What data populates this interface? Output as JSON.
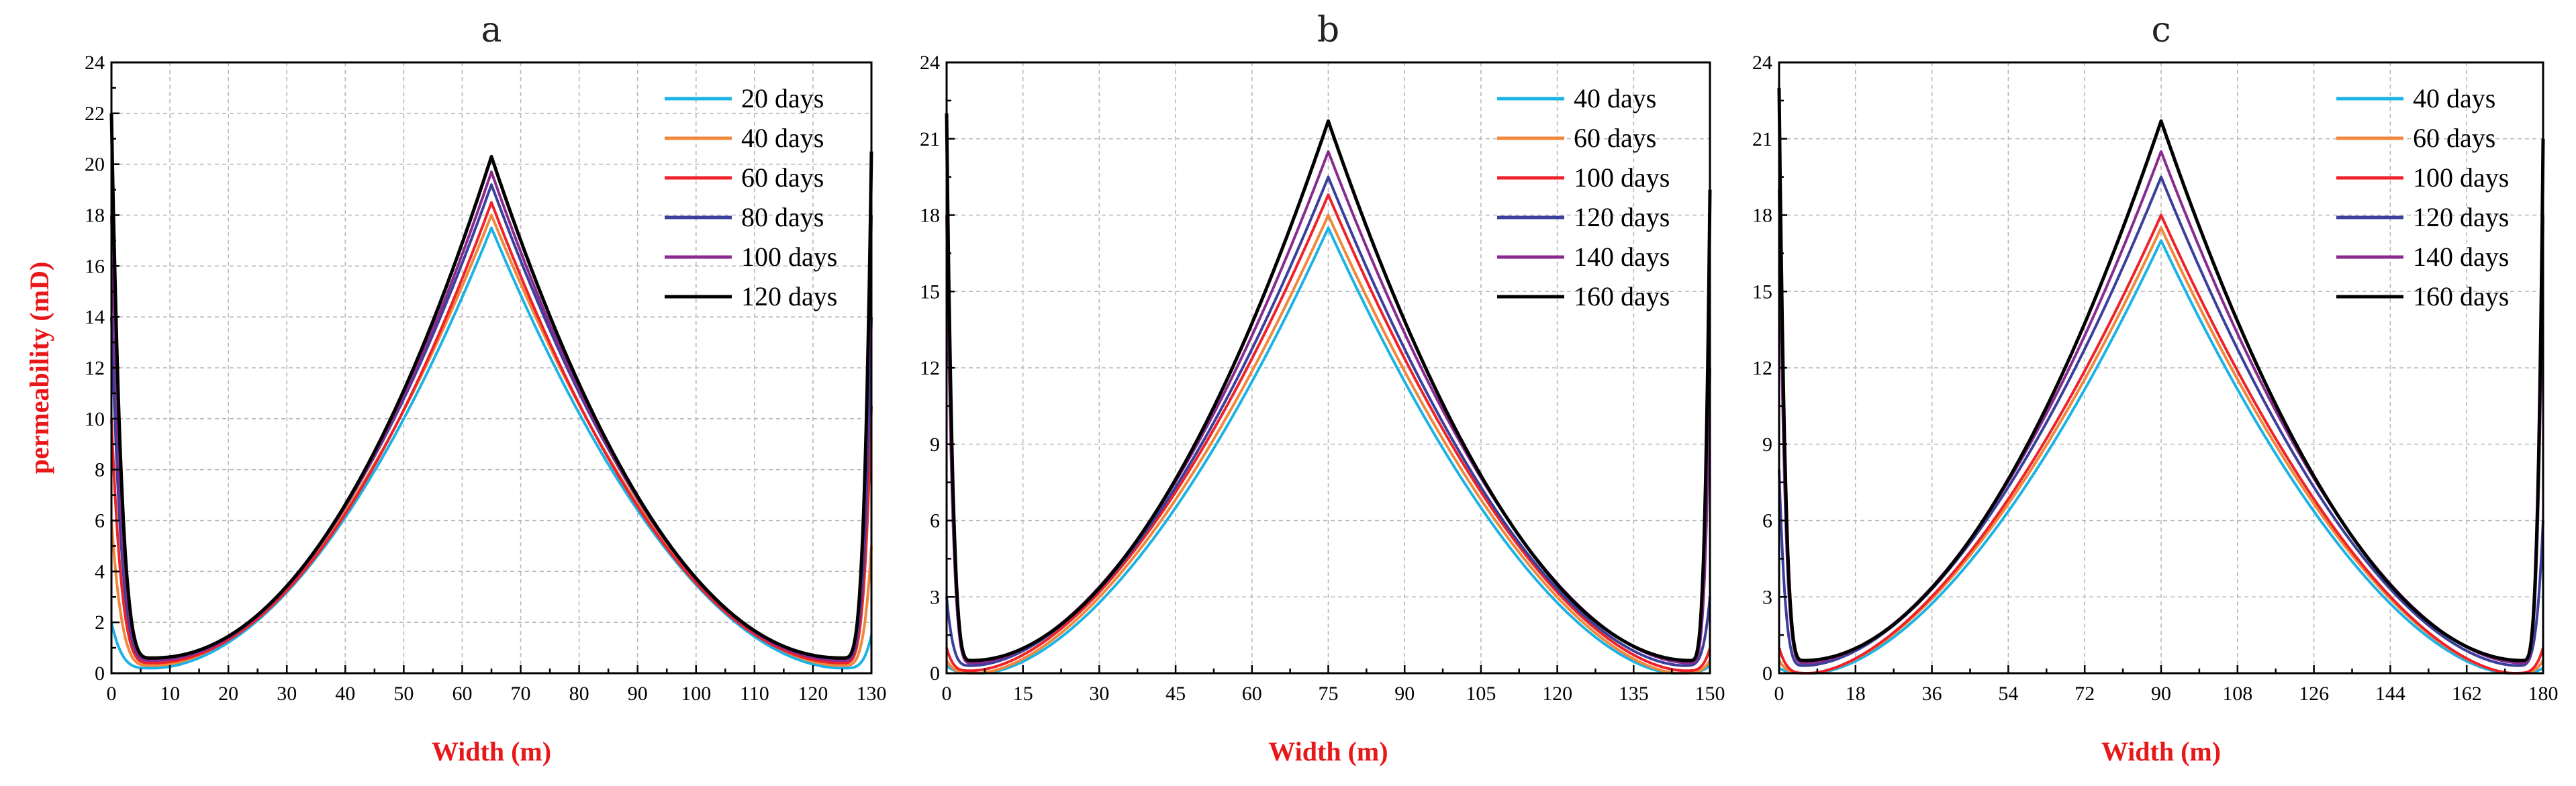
{
  "chart_data": [
    {
      "type": "line",
      "title": "a",
      "xlabel": "Width (m)",
      "ylabel": "permeability (mD)",
      "xlim": [
        0,
        130
      ],
      "ylim": [
        0,
        24
      ],
      "xticks": [
        0,
        10,
        20,
        30,
        40,
        50,
        60,
        70,
        80,
        90,
        100,
        110,
        120,
        130
      ],
      "yticks": [
        0,
        2,
        4,
        6,
        8,
        10,
        12,
        14,
        16,
        18,
        20,
        22,
        24
      ],
      "grid": true,
      "legend_position": "top-right",
      "series": [
        {
          "name": "20 days",
          "color": "#1bb3e6",
          "peak_x": 65,
          "peak": 17.5,
          "left_edge": 2.0,
          "right_edge": 1.5,
          "min_left_x": 7,
          "min_left": 0.2,
          "min_right_x": 125,
          "min_right": 0.2,
          "w": 1.9
        },
        {
          "name": "40 days",
          "color": "#f0883c",
          "peak_x": 65,
          "peak": 18.0,
          "left_edge": 6.0,
          "right_edge": 5.0,
          "min_left_x": 7,
          "min_left": 0.3,
          "min_right_x": 125,
          "min_right": 0.3,
          "w": 1.9
        },
        {
          "name": "60 days",
          "color": "#ee2228",
          "peak_x": 65,
          "peak": 18.5,
          "left_edge": 10.0,
          "right_edge": 10.5,
          "min_left_x": 7,
          "min_left": 0.4,
          "min_right_x": 125,
          "min_right": 0.4,
          "w": 2.0
        },
        {
          "name": "80 days",
          "color": "#3a3f9c",
          "peak_x": 65,
          "peak": 19.2,
          "left_edge": 14.0,
          "right_edge": 14.0,
          "min_left_x": 7,
          "min_left": 0.5,
          "min_right_x": 125,
          "min_right": 0.5,
          "w": 2.0
        },
        {
          "name": "100 days",
          "color": "#8a2a8f",
          "peak_x": 65,
          "peak": 19.7,
          "left_edge": 18.0,
          "right_edge": 18.0,
          "min_left_x": 7,
          "min_left": 0.5,
          "min_right_x": 125,
          "min_right": 0.5,
          "w": 2.05
        },
        {
          "name": "120 days",
          "color": "#000000",
          "peak_x": 65,
          "peak": 20.3,
          "left_edge": 22.0,
          "right_edge": 20.5,
          "min_left_x": 7,
          "min_left": 0.6,
          "min_right_x": 125,
          "min_right": 0.6,
          "w": 2.1
        }
      ]
    },
    {
      "type": "line",
      "title": "b",
      "xlabel": "Width (m)",
      "ylabel": "",
      "xlim": [
        0,
        150
      ],
      "ylim": [
        0,
        24
      ],
      "xticks": [
        0,
        15,
        30,
        45,
        60,
        75,
        90,
        105,
        120,
        135,
        150
      ],
      "yticks": [
        0,
        3,
        6,
        9,
        12,
        15,
        18,
        21,
        24
      ],
      "grid": true,
      "legend_position": "top-right",
      "series": [
        {
          "name": "40 days",
          "color": "#1bb3e6",
          "peak_x": 75,
          "peak": 17.5,
          "left_edge": 0.3,
          "right_edge": 0.3,
          "min_left_x": 7,
          "min_left": 0.0,
          "min_right_x": 143,
          "min_right": 0.0,
          "w": 1.7
        },
        {
          "name": "60 days",
          "color": "#f0883c",
          "peak_x": 75,
          "peak": 18.0,
          "left_edge": 0.5,
          "right_edge": 0.5,
          "min_left_x": 6,
          "min_left": 0.0,
          "min_right_x": 144,
          "min_right": 0.0,
          "w": 1.7
        },
        {
          "name": "100 days",
          "color": "#ee2228",
          "peak_x": 75,
          "peak": 18.8,
          "left_edge": 1.0,
          "right_edge": 1.0,
          "min_left_x": 5,
          "min_left": 0.1,
          "min_right_x": 145,
          "min_right": 0.1,
          "w": 1.75
        },
        {
          "name": "120 days",
          "color": "#3a3f9c",
          "peak_x": 75,
          "peak": 19.5,
          "left_edge": 3.0,
          "right_edge": 3.0,
          "min_left_x": 5,
          "min_left": 0.3,
          "min_right_x": 145,
          "min_right": 0.3,
          "w": 1.8
        },
        {
          "name": "140 days",
          "color": "#8a2a8f",
          "peak_x": 75,
          "peak": 20.5,
          "left_edge": 18.0,
          "right_edge": 12.0,
          "min_left_x": 5,
          "min_left": 0.4,
          "min_right_x": 146,
          "min_right": 0.4,
          "w": 1.85
        },
        {
          "name": "160 days",
          "color": "#000000",
          "peak_x": 75,
          "peak": 21.7,
          "left_edge": 22.0,
          "right_edge": 19.0,
          "min_left_x": 5,
          "min_left": 0.5,
          "min_right_x": 146,
          "min_right": 0.5,
          "w": 1.95
        }
      ]
    },
    {
      "type": "line",
      "title": "c",
      "xlabel": "Width (m)",
      "ylabel": "",
      "xlim": [
        0,
        180
      ],
      "ylim": [
        0,
        24
      ],
      "xticks": [
        0,
        18,
        36,
        54,
        72,
        90,
        108,
        126,
        144,
        162,
        180
      ],
      "yticks": [
        0,
        3,
        6,
        9,
        12,
        15,
        18,
        21,
        24
      ],
      "grid": true,
      "legend_position": "top-right",
      "series": [
        {
          "name": "40 days",
          "color": "#1bb3e6",
          "peak_x": 90,
          "peak": 17.0,
          "left_edge": 0.2,
          "right_edge": 0.2,
          "min_left_x": 8,
          "min_left": 0.0,
          "min_right_x": 172,
          "min_right": 0.0,
          "w": 1.7
        },
        {
          "name": "60 days",
          "color": "#f0883c",
          "peak_x": 90,
          "peak": 17.5,
          "left_edge": 0.5,
          "right_edge": 0.5,
          "min_left_x": 7,
          "min_left": 0.0,
          "min_right_x": 173,
          "min_right": 0.0,
          "w": 1.7
        },
        {
          "name": "100 days",
          "color": "#ee2228",
          "peak_x": 90,
          "peak": 18.0,
          "left_edge": 1.0,
          "right_edge": 1.0,
          "min_left_x": 7,
          "min_left": 0.0,
          "min_right_x": 173,
          "min_right": 0.0,
          "w": 1.7
        },
        {
          "name": "120 days",
          "color": "#3a3f9c",
          "peak_x": 90,
          "peak": 19.5,
          "left_edge": 8.0,
          "right_edge": 6.0,
          "min_left_x": 6,
          "min_left": 0.3,
          "min_right_x": 174,
          "min_right": 0.3,
          "w": 1.8
        },
        {
          "name": "140 days",
          "color": "#8a2a8f",
          "peak_x": 90,
          "peak": 20.5,
          "left_edge": 19.0,
          "right_edge": 18.0,
          "min_left_x": 6,
          "min_left": 0.4,
          "min_right_x": 175,
          "min_right": 0.4,
          "w": 1.85
        },
        {
          "name": "160 days",
          "color": "#000000",
          "peak_x": 90,
          "peak": 21.7,
          "left_edge": 23.0,
          "right_edge": 21.0,
          "min_left_x": 6,
          "min_left": 0.5,
          "min_right_x": 175,
          "min_right": 0.5,
          "w": 1.95
        }
      ]
    }
  ]
}
